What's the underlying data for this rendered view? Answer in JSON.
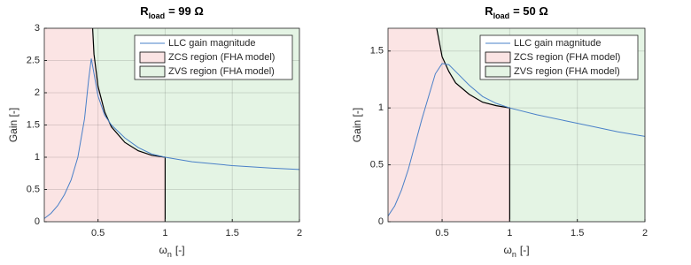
{
  "chart_data": [
    {
      "type": "line",
      "title_parts": [
        "R",
        "load",
        "= 99 Ω"
      ],
      "xlabel_parts": [
        "ω",
        "n",
        "[-]"
      ],
      "ylabel": "Gain [-]",
      "xlim": [
        0.1,
        2
      ],
      "ylim": [
        0,
        3
      ],
      "xticks": [
        0.5,
        1,
        1.5,
        2
      ],
      "yticks": [
        0,
        0.5,
        1,
        1.5,
        2,
        2.5,
        3
      ],
      "grid": true,
      "series": [
        {
          "name": "LLC gain magnitude",
          "color": "#4a80c8",
          "x": [
            0.1,
            0.15,
            0.2,
            0.25,
            0.3,
            0.35,
            0.4,
            0.43,
            0.45,
            0.47,
            0.5,
            0.55,
            0.6,
            0.7,
            0.8,
            0.9,
            1.0,
            1.2,
            1.5,
            1.8,
            2.0
          ],
          "values": [
            0.05,
            0.13,
            0.25,
            0.42,
            0.65,
            1.0,
            1.6,
            2.2,
            2.53,
            2.3,
            1.95,
            1.65,
            1.5,
            1.3,
            1.15,
            1.05,
            1.0,
            0.93,
            0.87,
            0.83,
            0.81
          ]
        }
      ],
      "boundary": {
        "color": "#000000",
        "x": [
          0.46,
          0.47,
          0.5,
          0.55,
          0.6,
          0.7,
          0.8,
          0.9,
          1.0,
          1.0
        ],
        "values": [
          3,
          2.6,
          2.1,
          1.7,
          1.47,
          1.23,
          1.1,
          1.03,
          1.0,
          0
        ]
      },
      "regions": [
        {
          "name": "ZCS region (FHA model)",
          "color": "#fbe4e4"
        },
        {
          "name": "ZVS region (FHA model)",
          "color": "#e4f4e4"
        }
      ]
    },
    {
      "type": "line",
      "title_parts": [
        "R",
        "load",
        "= 50 Ω"
      ],
      "xlabel_parts": [
        "ω",
        "n",
        "[-]"
      ],
      "ylabel": "Gain [-]",
      "xlim": [
        0.1,
        2
      ],
      "ylim": [
        0,
        1.7
      ],
      "xticks": [
        0.5,
        1,
        1.5,
        2
      ],
      "yticks": [
        0,
        0.5,
        1,
        1.5
      ],
      "grid": true,
      "series": [
        {
          "name": "LLC gain magnitude",
          "color": "#4a80c8",
          "x": [
            0.1,
            0.15,
            0.2,
            0.25,
            0.3,
            0.35,
            0.4,
            0.45,
            0.5,
            0.55,
            0.6,
            0.7,
            0.8,
            0.9,
            1.0,
            1.2,
            1.4,
            1.6,
            1.8,
            2.0
          ],
          "values": [
            0.05,
            0.14,
            0.28,
            0.46,
            0.68,
            0.9,
            1.1,
            1.3,
            1.39,
            1.38,
            1.32,
            1.2,
            1.1,
            1.04,
            1.0,
            0.94,
            0.89,
            0.84,
            0.79,
            0.75
          ]
        }
      ],
      "boundary": {
        "color": "#000000",
        "x": [
          0.46,
          0.5,
          0.55,
          0.6,
          0.7,
          0.8,
          0.9,
          1.0,
          1.0
        ],
        "values": [
          1.7,
          1.45,
          1.32,
          1.22,
          1.12,
          1.05,
          1.02,
          1.0,
          0
        ]
      },
      "regions": [
        {
          "name": "ZCS region (FHA model)",
          "color": "#fbe4e4"
        },
        {
          "name": "ZVS region (FHA model)",
          "color": "#e4f4e4"
        }
      ]
    }
  ]
}
